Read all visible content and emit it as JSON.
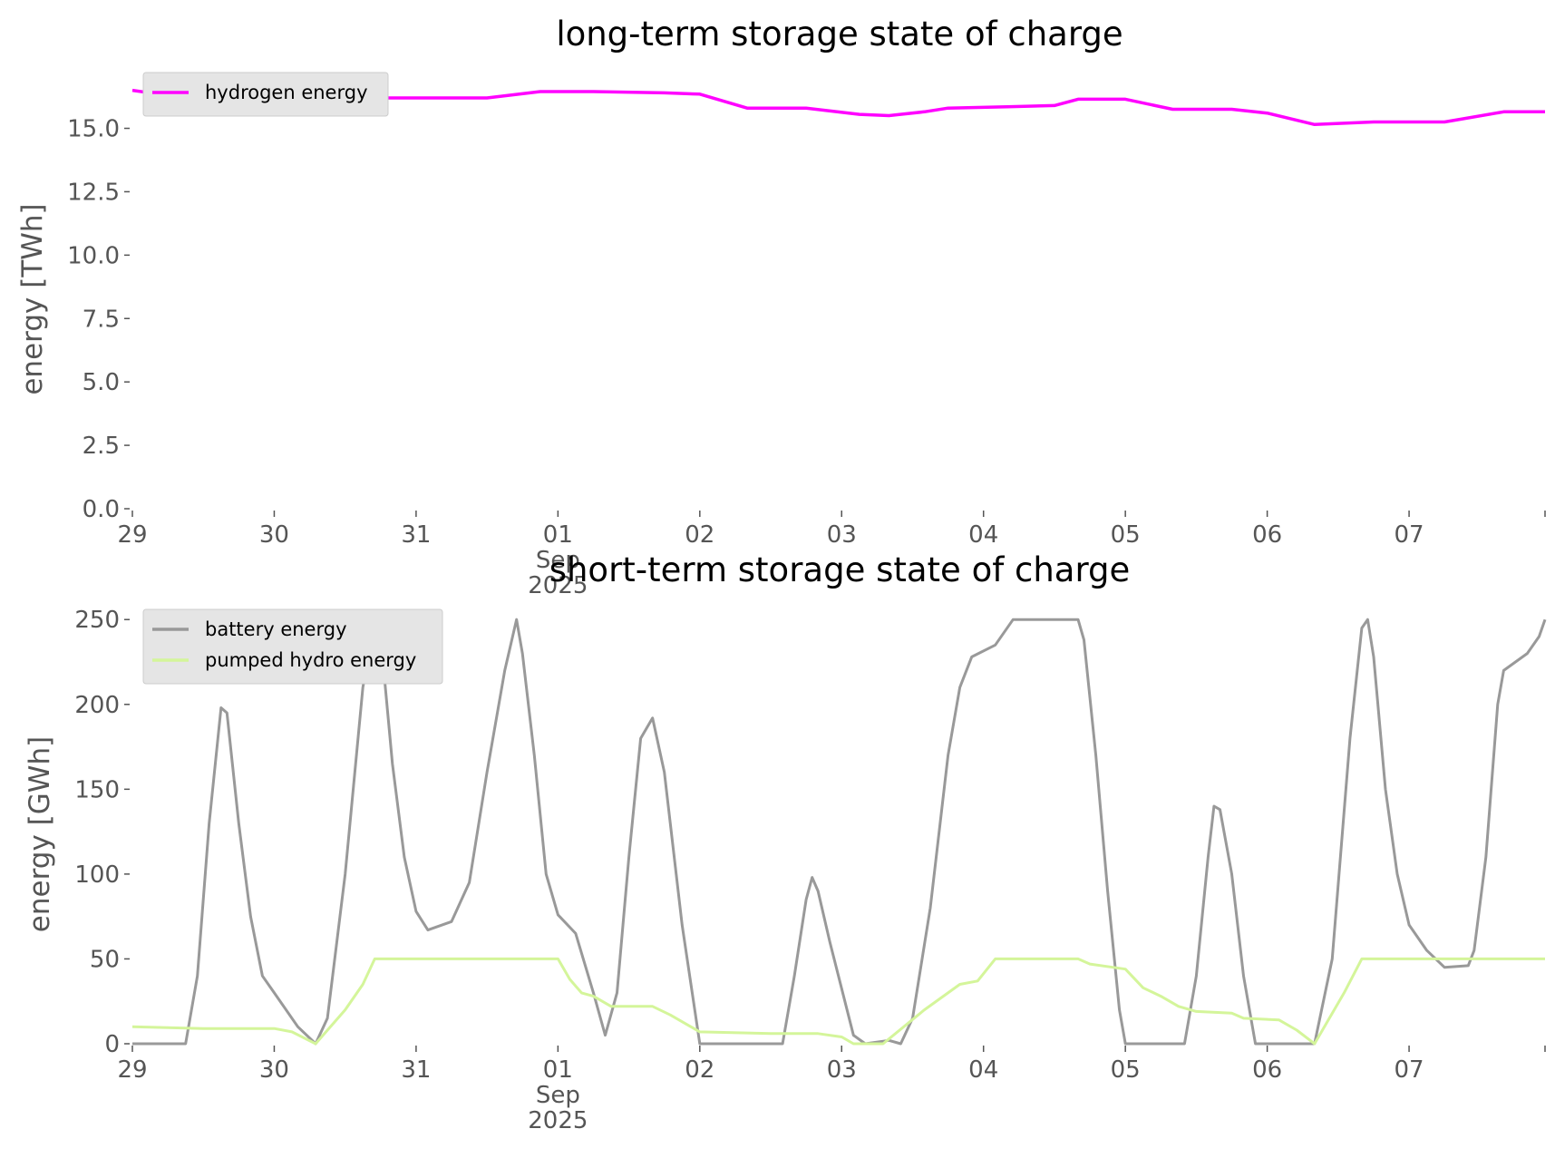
{
  "chart_data": [
    {
      "type": "line",
      "title": "long-term storage state of charge",
      "ylabel": "energy [TWh]",
      "xlabel": "",
      "ylim": [
        0,
        17.2
      ],
      "yticks": [
        "0.0",
        "2.5",
        "5.0",
        "7.5",
        "10.0",
        "12.5",
        "15.0"
      ],
      "xticks": [
        "29",
        "30",
        "31",
        "01",
        "02",
        "03",
        "04",
        "05",
        "06",
        "07"
      ],
      "xtick_sub": [
        "Sep",
        "2025"
      ],
      "x_range": [
        "2025-08-29",
        "2025-09-07 23:00"
      ],
      "legend_position": "upper left",
      "series": [
        {
          "name": "hydrogen energy",
          "color": "#ff00ff",
          "points": [
            [
              "2025-08-29 00:00",
              16.5
            ],
            [
              "2025-08-29 06:00",
              16.3
            ],
            [
              "2025-08-29 18:00",
              16.2
            ],
            [
              "2025-08-30 12:00",
              16.2
            ],
            [
              "2025-08-31 12:00",
              16.2
            ],
            [
              "2025-08-31 21:00",
              16.45
            ],
            [
              "2025-09-01 06:00",
              16.45
            ],
            [
              "2025-09-01 18:00",
              16.4
            ],
            [
              "2025-09-02 00:00",
              16.35
            ],
            [
              "2025-09-02 08:00",
              15.8
            ],
            [
              "2025-09-02 18:00",
              15.8
            ],
            [
              "2025-09-03 03:00",
              15.55
            ],
            [
              "2025-09-03 08:00",
              15.5
            ],
            [
              "2025-09-03 14:00",
              15.65
            ],
            [
              "2025-09-03 18:00",
              15.8
            ],
            [
              "2025-09-04 04:00",
              15.85
            ],
            [
              "2025-09-04 12:00",
              15.9
            ],
            [
              "2025-09-04 16:00",
              16.15
            ],
            [
              "2025-09-05 00:00",
              16.15
            ],
            [
              "2025-09-05 08:00",
              15.75
            ],
            [
              "2025-09-05 18:00",
              15.75
            ],
            [
              "2025-09-06 00:00",
              15.6
            ],
            [
              "2025-09-06 08:00",
              15.15
            ],
            [
              "2025-09-06 18:00",
              15.25
            ],
            [
              "2025-09-07 06:00",
              15.25
            ],
            [
              "2025-09-07 16:00",
              15.65
            ],
            [
              "2025-09-07 23:00",
              15.65
            ]
          ]
        }
      ]
    },
    {
      "type": "line",
      "title": "short-term storage state of charge",
      "ylabel": "energy [GWh]",
      "xlabel": "",
      "ylim": [
        0,
        256
      ],
      "yticks": [
        "0",
        "50",
        "100",
        "150",
        "200",
        "250"
      ],
      "xticks": [
        "29",
        "30",
        "31",
        "01",
        "02",
        "03",
        "04",
        "05",
        "06",
        "07"
      ],
      "xtick_sub": [
        "Sep",
        "2025"
      ],
      "x_range": [
        "2025-08-29",
        "2025-09-07 23:00"
      ],
      "legend_position": "upper left",
      "series": [
        {
          "name": "battery energy",
          "color": "#999999",
          "points": [
            [
              "2025-08-29 00:00",
              0
            ],
            [
              "2025-08-29 09:00",
              0
            ],
            [
              "2025-08-29 11:00",
              40
            ],
            [
              "2025-08-29 13:00",
              130
            ],
            [
              "2025-08-29 15:00",
              198
            ],
            [
              "2025-08-29 16:00",
              195
            ],
            [
              "2025-08-29 18:00",
              130
            ],
            [
              "2025-08-29 20:00",
              75
            ],
            [
              "2025-08-29 22:00",
              40
            ],
            [
              "2025-08-30 00:00",
              30
            ],
            [
              "2025-08-30 04:00",
              10
            ],
            [
              "2025-08-30 07:00",
              0
            ],
            [
              "2025-08-30 09:00",
              15
            ],
            [
              "2025-08-30 12:00",
              100
            ],
            [
              "2025-08-30 15:00",
              210
            ],
            [
              "2025-08-30 17:00",
              250
            ],
            [
              "2025-08-30 18:00",
              240
            ],
            [
              "2025-08-30 20:00",
              165
            ],
            [
              "2025-08-30 22:00",
              110
            ],
            [
              "2025-08-31 00:00",
              78
            ],
            [
              "2025-08-31 02:00",
              67
            ],
            [
              "2025-08-31 06:00",
              72
            ],
            [
              "2025-08-31 09:00",
              95
            ],
            [
              "2025-08-31 12:00",
              160
            ],
            [
              "2025-08-31 15:00",
              220
            ],
            [
              "2025-08-31 17:00",
              250
            ],
            [
              "2025-08-31 18:00",
              230
            ],
            [
              "2025-08-31 20:00",
              170
            ],
            [
              "2025-08-31 22:00",
              100
            ],
            [
              "2025-09-01 00:00",
              76
            ],
            [
              "2025-09-01 03:00",
              65
            ],
            [
              "2025-09-01 06:00",
              30
            ],
            [
              "2025-09-01 08:00",
              5
            ],
            [
              "2025-09-01 10:00",
              30
            ],
            [
              "2025-09-01 12:00",
              110
            ],
            [
              "2025-09-01 14:00",
              180
            ],
            [
              "2025-09-01 16:00",
              192
            ],
            [
              "2025-09-01 18:00",
              160
            ],
            [
              "2025-09-01 21:00",
              70
            ],
            [
              "2025-09-02 00:00",
              0
            ],
            [
              "2025-09-02 14:00",
              0
            ],
            [
              "2025-09-02 16:00",
              40
            ],
            [
              "2025-09-02 18:00",
              85
            ],
            [
              "2025-09-02 19:00",
              98
            ],
            [
              "2025-09-02 20:00",
              90
            ],
            [
              "2025-09-02 22:00",
              60
            ],
            [
              "2025-09-03 02:00",
              5
            ],
            [
              "2025-09-03 04:00",
              0
            ],
            [
              "2025-09-03 08:00",
              2
            ],
            [
              "2025-09-03 10:00",
              0
            ],
            [
              "2025-09-03 12:00",
              15
            ],
            [
              "2025-09-03 15:00",
              80
            ],
            [
              "2025-09-03 18:00",
              170
            ],
            [
              "2025-09-03 20:00",
              210
            ],
            [
              "2025-09-03 22:00",
              228
            ],
            [
              "2025-09-04 02:00",
              235
            ],
            [
              "2025-09-04 05:00",
              250
            ],
            [
              "2025-09-04 16:00",
              250
            ],
            [
              "2025-09-04 17:00",
              238
            ],
            [
              "2025-09-04 19:00",
              170
            ],
            [
              "2025-09-04 21:00",
              90
            ],
            [
              "2025-09-04 23:00",
              20
            ],
            [
              "2025-09-05 00:00",
              0
            ],
            [
              "2025-09-05 10:00",
              0
            ],
            [
              "2025-09-05 12:00",
              40
            ],
            [
              "2025-09-05 14:00",
              110
            ],
            [
              "2025-09-05 15:00",
              140
            ],
            [
              "2025-09-05 16:00",
              138
            ],
            [
              "2025-09-05 18:00",
              100
            ],
            [
              "2025-09-05 20:00",
              40
            ],
            [
              "2025-09-05 22:00",
              0
            ],
            [
              "2025-09-06 08:00",
              0
            ],
            [
              "2025-09-06 11:00",
              50
            ],
            [
              "2025-09-06 14:00",
              180
            ],
            [
              "2025-09-06 16:00",
              245
            ],
            [
              "2025-09-06 17:00",
              250
            ],
            [
              "2025-09-06 18:00",
              228
            ],
            [
              "2025-09-06 20:00",
              150
            ],
            [
              "2025-09-06 22:00",
              100
            ],
            [
              "2025-09-07 00:00",
              70
            ],
            [
              "2025-09-07 03:00",
              55
            ],
            [
              "2025-09-07 06:00",
              45
            ],
            [
              "2025-09-07 10:00",
              46
            ],
            [
              "2025-09-07 11:00",
              55
            ],
            [
              "2025-09-07 13:00",
              110
            ],
            [
              "2025-09-07 15:00",
              200
            ],
            [
              "2025-09-07 16:00",
              220
            ],
            [
              "2025-09-07 18:00",
              225
            ],
            [
              "2025-09-07 20:00",
              230
            ],
            [
              "2025-09-07 22:00",
              240
            ],
            [
              "2025-09-07 23:00",
              250
            ]
          ]
        },
        {
          "name": "pumped hydro energy",
          "color": "#d4f59a",
          "points": [
            [
              "2025-08-29 00:00",
              10
            ],
            [
              "2025-08-29 12:00",
              9
            ],
            [
              "2025-08-30 00:00",
              9
            ],
            [
              "2025-08-30 03:00",
              7
            ],
            [
              "2025-08-30 07:00",
              0
            ],
            [
              "2025-08-30 12:00",
              20
            ],
            [
              "2025-08-30 15:00",
              35
            ],
            [
              "2025-08-30 17:00",
              50
            ],
            [
              "2025-09-01 00:00",
              50
            ],
            [
              "2025-09-01 02:00",
              38
            ],
            [
              "2025-09-01 04:00",
              30
            ],
            [
              "2025-09-01 06:00",
              28
            ],
            [
              "2025-09-01 09:00",
              22
            ],
            [
              "2025-09-01 16:00",
              22
            ],
            [
              "2025-09-01 19:00",
              17
            ],
            [
              "2025-09-02 00:00",
              7
            ],
            [
              "2025-09-02 12:00",
              6
            ],
            [
              "2025-09-02 20:00",
              6
            ],
            [
              "2025-09-03 00:00",
              4
            ],
            [
              "2025-09-03 02:00",
              0
            ],
            [
              "2025-09-03 07:00",
              0
            ],
            [
              "2025-09-03 14:00",
              20
            ],
            [
              "2025-09-03 20:00",
              35
            ],
            [
              "2025-09-03 23:00",
              37
            ],
            [
              "2025-09-04 02:00",
              50
            ],
            [
              "2025-09-04 16:00",
              50
            ],
            [
              "2025-09-04 18:00",
              47
            ],
            [
              "2025-09-04 22:00",
              45
            ],
            [
              "2025-09-05 00:00",
              44
            ],
            [
              "2025-09-05 03:00",
              33
            ],
            [
              "2025-09-05 06:00",
              28
            ],
            [
              "2025-09-05 09:00",
              22
            ],
            [
              "2025-09-05 12:00",
              19
            ],
            [
              "2025-09-05 18:00",
              18
            ],
            [
              "2025-09-05 20:00",
              15
            ],
            [
              "2025-09-06 02:00",
              14
            ],
            [
              "2025-09-06 05:00",
              8
            ],
            [
              "2025-09-06 08:00",
              0
            ],
            [
              "2025-09-06 13:00",
              30
            ],
            [
              "2025-09-06 16:00",
              50
            ],
            [
              "2025-09-07 23:00",
              50
            ]
          ]
        }
      ]
    }
  ]
}
